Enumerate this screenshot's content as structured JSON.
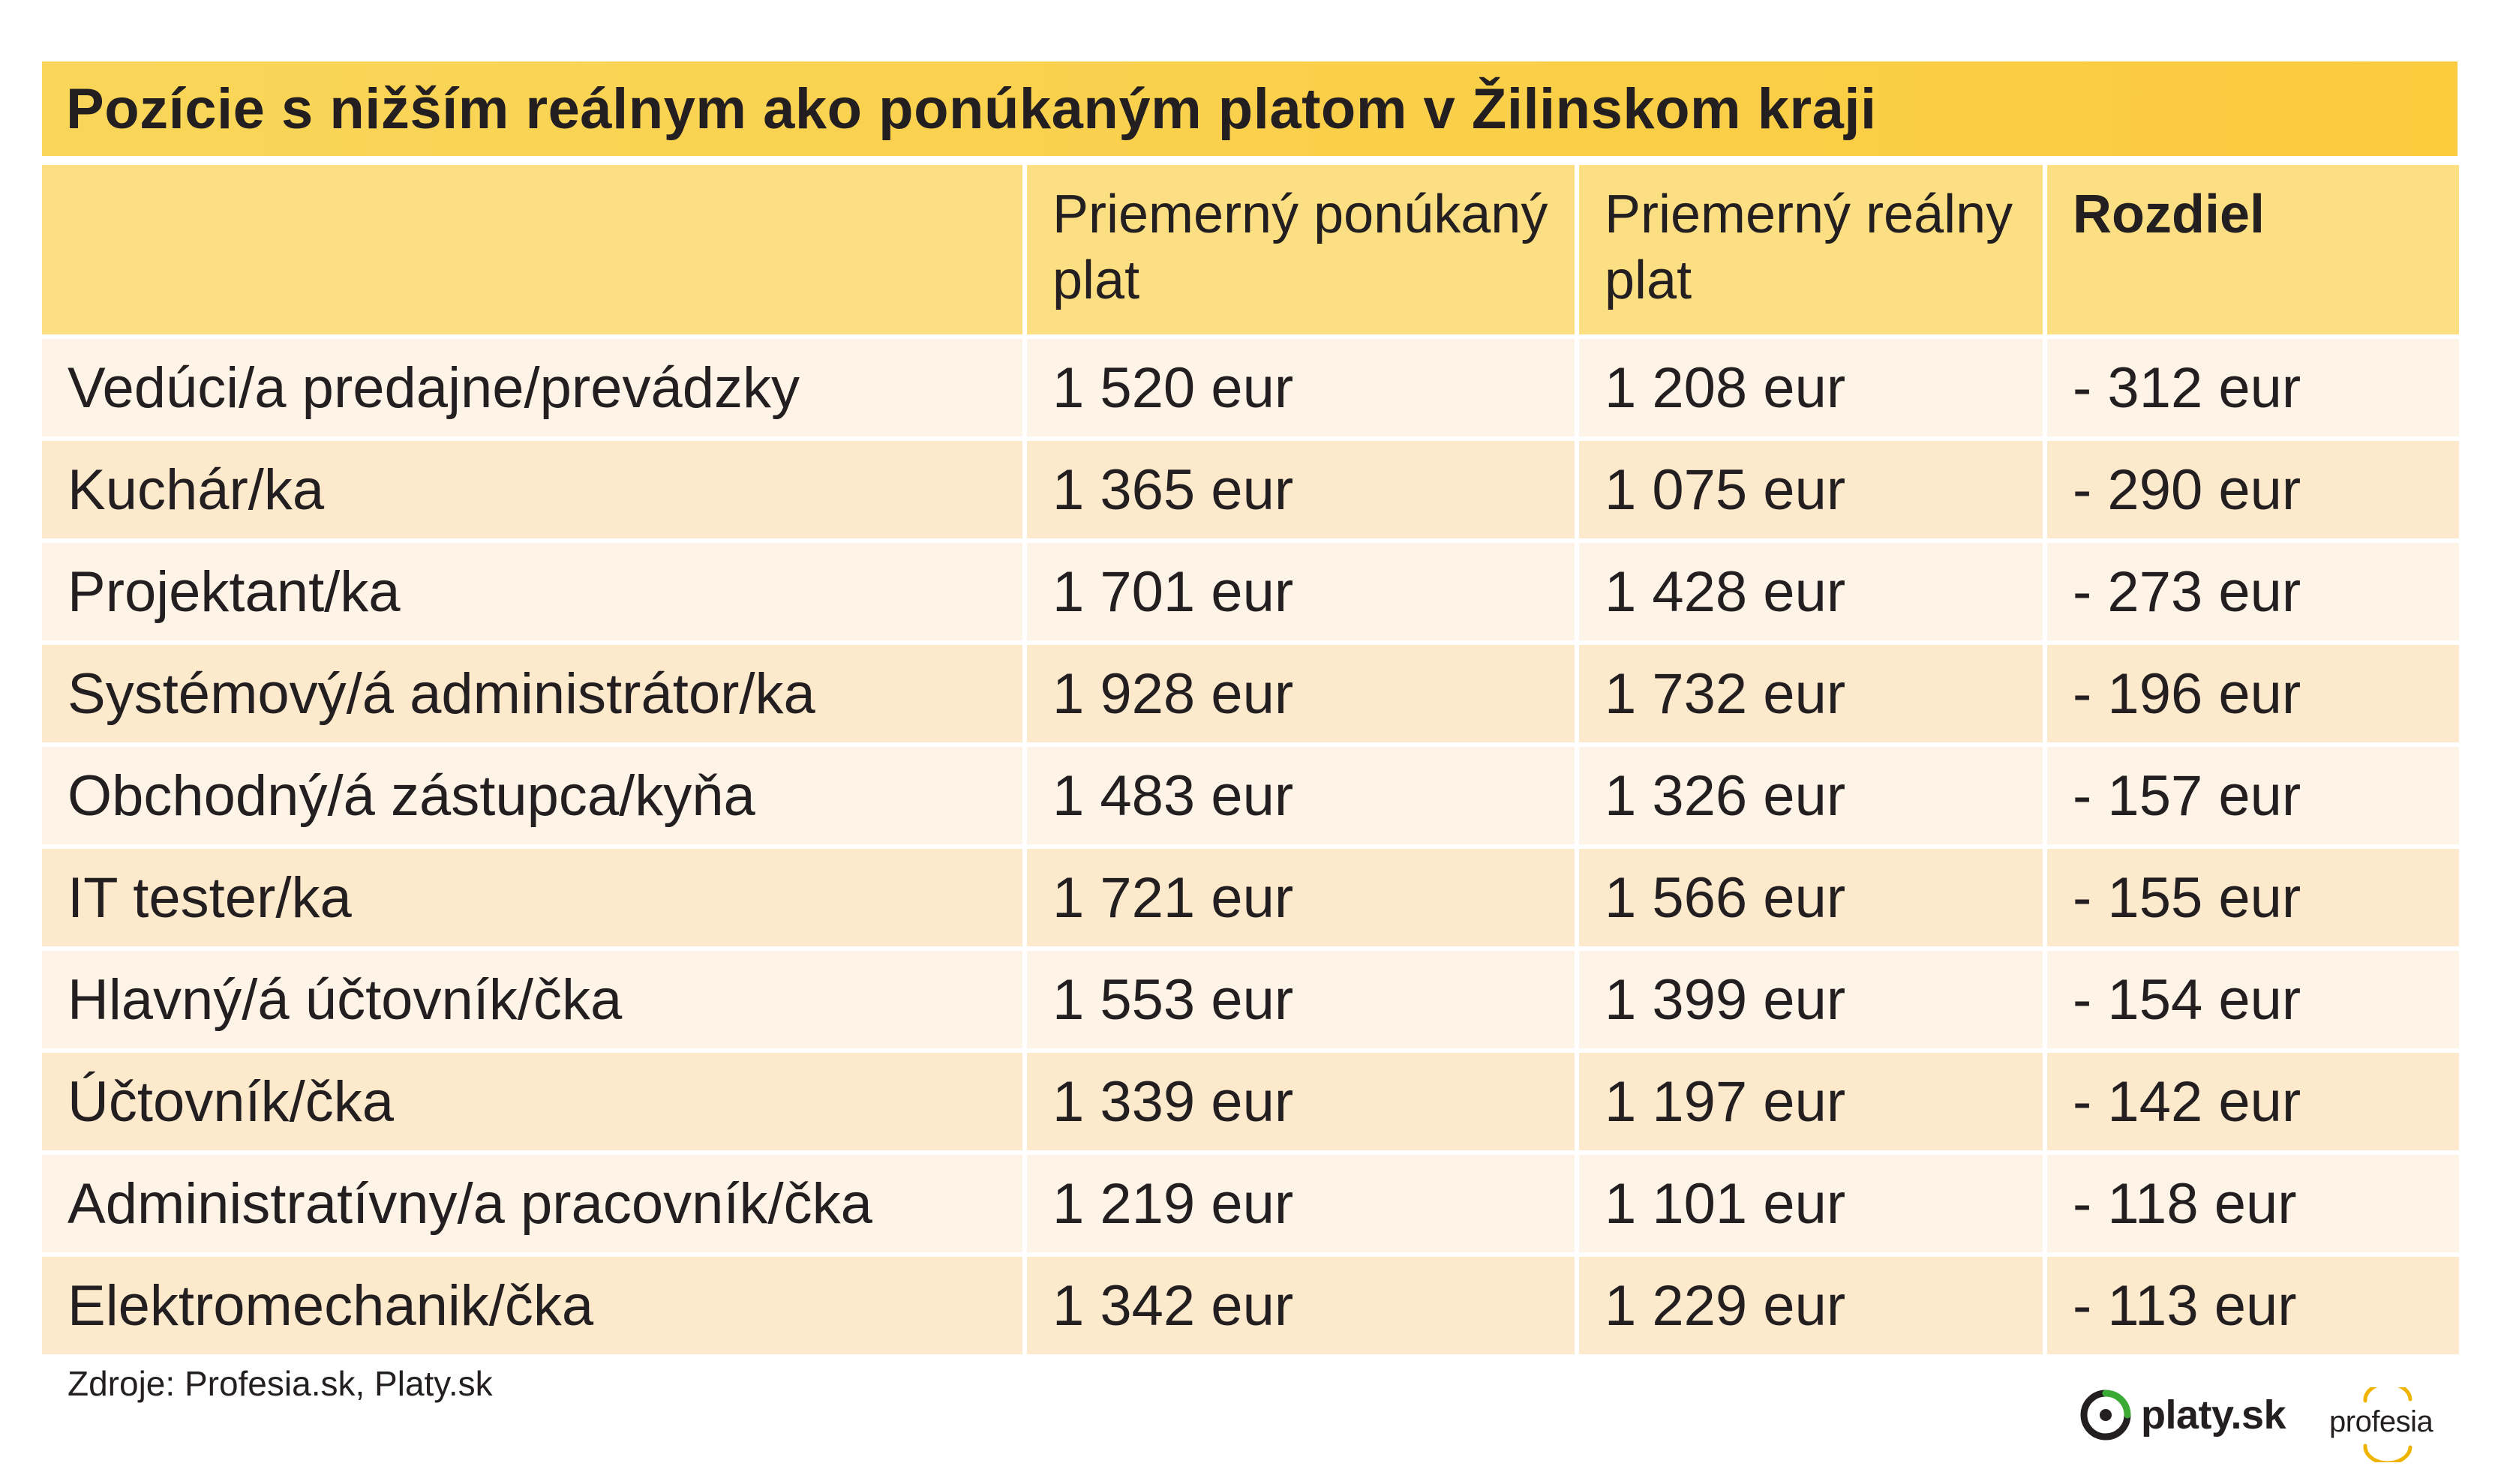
{
  "title": "Pozície s nižším reálnym ako ponúkaným platom v Žilinskom kraji",
  "columns": {
    "position": "",
    "offered": "Priemerný ponúkaný plat",
    "real": "Priemerný reálny plat",
    "difference": "Rozdiel"
  },
  "rows": [
    {
      "position": "Vedúci/a predajne/prevádzky",
      "offered": "1 520 eur",
      "real": "1 208 eur",
      "difference": "- 312 eur"
    },
    {
      "position": "Kuchár/ka",
      "offered": "1 365 eur",
      "real": "1 075 eur",
      "difference": "- 290 eur"
    },
    {
      "position": "Projektant/ka",
      "offered": "1 701 eur",
      "real": "1 428 eur",
      "difference": "- 273 eur"
    },
    {
      "position": "Systémový/á administrátor/ka",
      "offered": "1 928 eur",
      "real": "1 732 eur",
      "difference": "- 196 eur"
    },
    {
      "position": "Obchodný/á zástupca/kyňa",
      "offered": "1 483 eur",
      "real": "1 326 eur",
      "difference": "- 157 eur"
    },
    {
      "position": "IT tester/ka",
      "offered": "1 721 eur",
      "real": "1 566 eur",
      "difference": "- 155 eur"
    },
    {
      "position": "Hlavný/á účtovník/čka",
      "offered": "1 553 eur",
      "real": "1 399 eur",
      "difference": "- 154 eur"
    },
    {
      "position": "Účtovník/čka",
      "offered": "1 339 eur",
      "real": "1 197 eur",
      "difference": "- 142 eur"
    },
    {
      "position": "Administratívny/a pracovník/čka",
      "offered": "1 219 eur",
      "real": "1 101 eur",
      "difference": "- 118 eur"
    },
    {
      "position": "Elektromechanik/čka",
      "offered": "1 342 eur",
      "real": "1 229 eur",
      "difference": "- 113 eur"
    }
  ],
  "source": "Zdroje: Profesia.sk, Platy.sk",
  "logos": {
    "platy": "platy.sk",
    "profesia": "profesia"
  },
  "colors": {
    "title_bar": "#fbcb3e",
    "header_row": "#fcdf83",
    "row_light": "#fef3e7",
    "row_dark": "#fde9cc",
    "platy_green": "#3aaa35",
    "profesia_gold": "#f0b400"
  },
  "chart_data": {
    "type": "table",
    "title": "Pozície s nižším reálnym ako ponúkaným platom v Žilinskom kraji",
    "headers": [
      "",
      "Priemerný ponúkaný plat",
      "Priemerný reálny plat",
      "Rozdiel"
    ],
    "unit": "eur",
    "categories": [
      "Vedúci/a predajne/prevádzky",
      "Kuchár/ka",
      "Projektant/ka",
      "Systémový/á administrátor/ka",
      "Obchodný/á zástupca/kyňa",
      "IT tester/ka",
      "Hlavný/á účtovník/čka",
      "Účtovník/čka",
      "Administratívny/a pracovník/čka",
      "Elektromechanik/čka"
    ],
    "series": [
      {
        "name": "Priemerný ponúkaný plat",
        "values": [
          1520,
          1365,
          1701,
          1928,
          1483,
          1721,
          1553,
          1339,
          1219,
          1342
        ]
      },
      {
        "name": "Priemerný reálny plat",
        "values": [
          1208,
          1075,
          1428,
          1732,
          1326,
          1566,
          1399,
          1197,
          1101,
          1229
        ]
      },
      {
        "name": "Rozdiel",
        "values": [
          -312,
          -290,
          -273,
          -196,
          -157,
          -155,
          -154,
          -142,
          -118,
          -113
        ]
      }
    ],
    "source": "Zdroje: Profesia.sk, Platy.sk"
  }
}
